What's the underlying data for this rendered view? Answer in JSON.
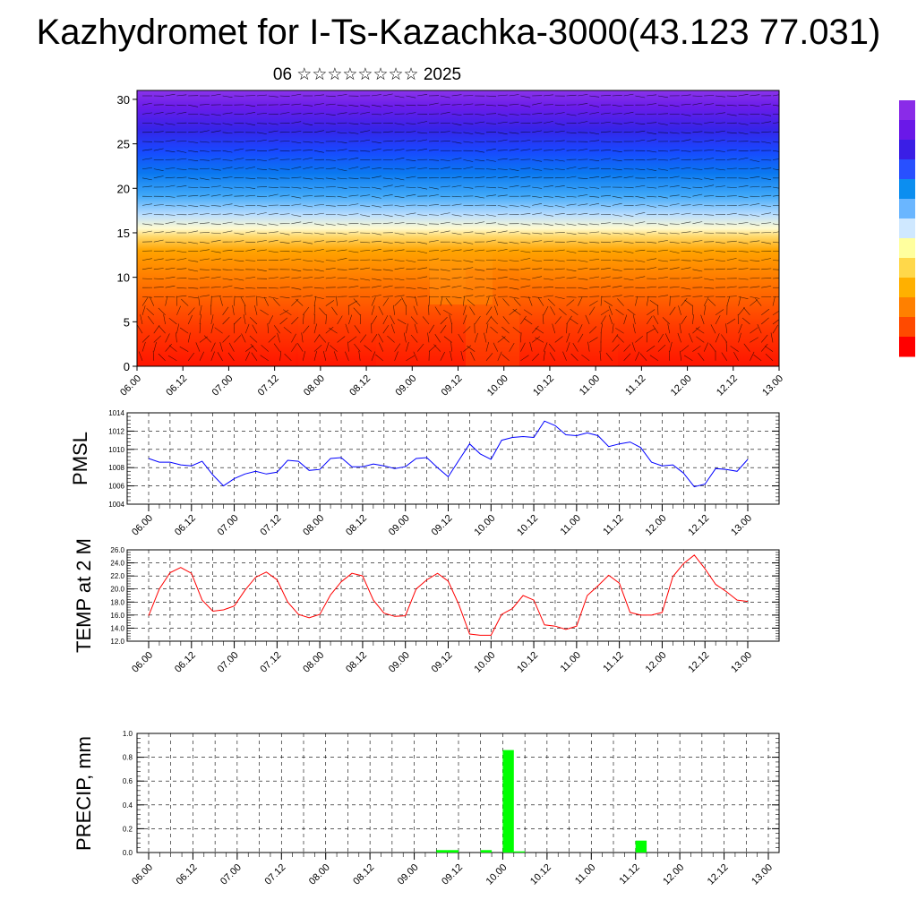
{
  "title": "Kazhydromet for I-Ts-Kazachka-3000(43.123 77.031)",
  "subtitle": "06 ☆☆☆☆☆☆☆☆ 2025",
  "colors": {
    "pmsl_line": "#0000ff",
    "temp_line": "#ff0000",
    "precip_bar": "#00ff00",
    "grid": "#000000"
  },
  "chart_data": [
    {
      "type": "heatmap",
      "title": "",
      "xlabel": "",
      "ylabel": "",
      "x_tick_labels": [
        "06.00",
        "06.12",
        "07.00",
        "07.12",
        "08.00",
        "08.12",
        "09.00",
        "09.12",
        "10.00",
        "10.12",
        "11.00",
        "11.12",
        "12.00",
        "12.12",
        "13.00"
      ],
      "y_ticks": [
        0,
        5,
        10,
        15,
        20,
        25,
        30
      ],
      "ylim": [
        0,
        31
      ],
      "colorbar_colors": [
        "#ff0000",
        "#ff4a00",
        "#ff8000",
        "#ffb000",
        "#ffd84a",
        "#ffff9e",
        "#cfe8ff",
        "#6ab6ff",
        "#0c8ef0",
        "#2850ff",
        "#3a1ee6",
        "#6a18e8",
        "#8a2be8"
      ],
      "overlay": "wind barbs"
    },
    {
      "type": "line",
      "ylabel": "PMSL",
      "ylim": [
        1004,
        1014
      ],
      "y_ticks": [
        "1004",
        "1006",
        "1008",
        "1010",
        "1012",
        "1014"
      ],
      "x_tick_labels": [
        "06.00",
        "06.12",
        "07.00",
        "07.12",
        "08.00",
        "08.12",
        "09.00",
        "09.12",
        "10.00",
        "10.12",
        "11.00",
        "11.12",
        "12.00",
        "12.12",
        "13.00"
      ],
      "values": [
        1009.0,
        1008.6,
        1008.6,
        1008.3,
        1008.2,
        1008.7,
        1007.2,
        1006.0,
        1006.8,
        1007.3,
        1007.6,
        1007.3,
        1007.5,
        1008.8,
        1008.7,
        1007.7,
        1007.8,
        1009.0,
        1009.1,
        1008.1,
        1008.1,
        1008.4,
        1008.2,
        1007.9,
        1008.1,
        1009.0,
        1009.1,
        1008.0,
        1007.0,
        1008.8,
        1010.6,
        1009.5,
        1008.9,
        1011.0,
        1011.3,
        1011.4,
        1011.3,
        1013.1,
        1012.6,
        1011.6,
        1011.5,
        1011.8,
        1011.5,
        1010.3,
        1010.6,
        1010.8,
        1010.2,
        1008.6,
        1008.2,
        1008.3,
        1007.4,
        1005.9,
        1006.2,
        1007.9,
        1007.8,
        1007.6,
        1008.9
      ]
    },
    {
      "type": "line",
      "ylabel": "TEMP at 2 M",
      "ylim": [
        12,
        26
      ],
      "y_ticks": [
        "12.0",
        "14.0",
        "16.0",
        "18.0",
        "20.0",
        "22.0",
        "24.0",
        "26.0"
      ],
      "x_tick_labels": [
        "06.00",
        "06.12",
        "07.00",
        "07.12",
        "08.00",
        "08.12",
        "09.00",
        "09.12",
        "10.00",
        "10.12",
        "11.00",
        "11.12",
        "12.00",
        "12.12",
        "13.00"
      ],
      "values": [
        15.9,
        20.0,
        22.5,
        23.3,
        22.4,
        18.3,
        16.6,
        16.8,
        17.4,
        19.8,
        21.8,
        22.6,
        21.4,
        18.0,
        16.1,
        15.6,
        16.1,
        19.1,
        21.1,
        22.4,
        22.0,
        18.3,
        16.3,
        15.8,
        15.9,
        20.0,
        21.4,
        22.4,
        21.2,
        17.6,
        13.1,
        12.9,
        12.9,
        16.1,
        17.0,
        19.0,
        18.3,
        14.5,
        14.3,
        13.8,
        14.3,
        19.0,
        20.5,
        22.1,
        20.9,
        16.4,
        16.0,
        16.0,
        16.4,
        21.9,
        23.9,
        25.2,
        23.1,
        20.7,
        19.6,
        18.3,
        18.1
      ]
    },
    {
      "type": "bar",
      "ylabel": "PRECIP, mm",
      "ylim": [
        0,
        1.0
      ],
      "y_ticks": [
        "0.0",
        "0.2",
        "0.4",
        "0.6",
        "0.8",
        "1.0"
      ],
      "x_tick_labels": [
        "06.00",
        "06.12",
        "07.00",
        "07.12",
        "08.00",
        "08.12",
        "09.00",
        "09.12",
        "10.00",
        "10.12",
        "11.00",
        "11.12",
        "12.00",
        "12.12",
        "13.00"
      ],
      "bars": [
        {
          "x": 26.5,
          "value": 0.02
        },
        {
          "x": 27.5,
          "value": 0.02
        },
        {
          "x": 30.5,
          "value": 0.02
        },
        {
          "x": 32.5,
          "value": 0.86
        },
        {
          "x": 33.5,
          "value": 0.01
        },
        {
          "x": 44.5,
          "value": 0.1
        }
      ]
    }
  ]
}
